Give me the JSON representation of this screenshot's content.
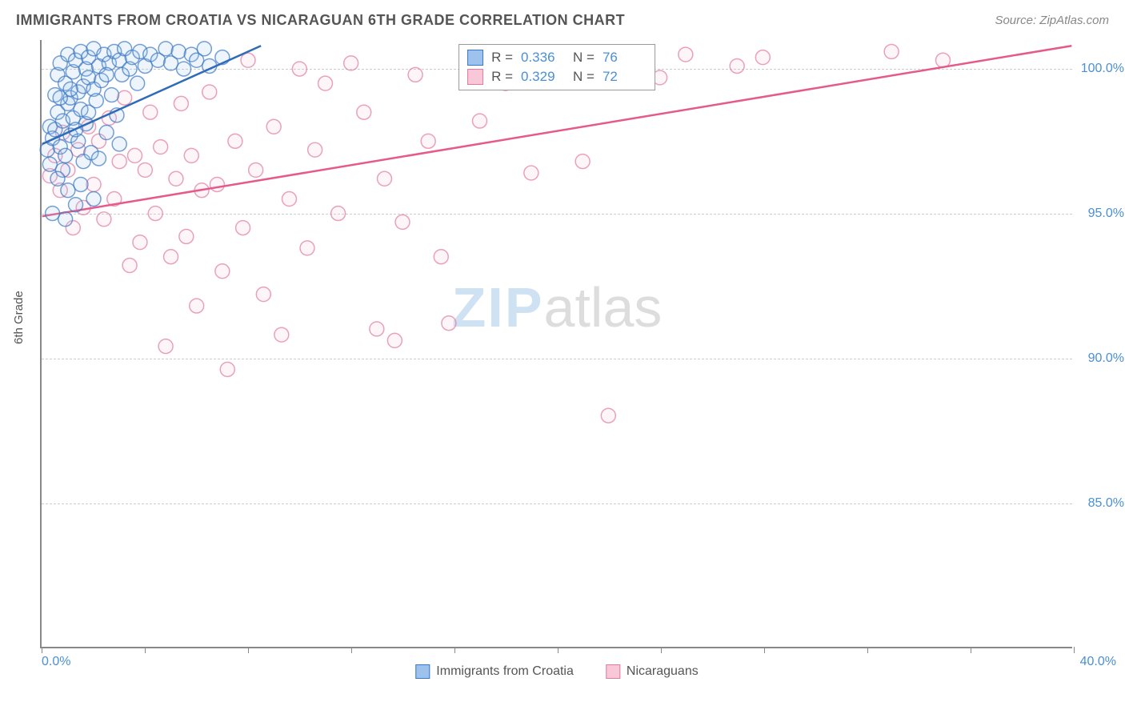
{
  "title": "IMMIGRANTS FROM CROATIA VS NICARAGUAN 6TH GRADE CORRELATION CHART",
  "source": "Source: ZipAtlas.com",
  "y_axis_label": "6th Grade",
  "watermark_a": "ZIP",
  "watermark_b": "atlas",
  "chart": {
    "type": "scatter",
    "xlim": [
      0,
      40
    ],
    "ylim": [
      80,
      101
    ],
    "x_ticks": [
      0,
      4,
      8,
      12,
      16,
      20,
      24,
      28,
      32,
      36,
      40
    ],
    "x_tick_labels": {
      "min": "0.0%",
      "max": "40.0%"
    },
    "y_gridlines": [
      85,
      90,
      95,
      100
    ],
    "y_tick_labels": [
      "85.0%",
      "90.0%",
      "95.0%",
      "100.0%"
    ],
    "background_color": "#ffffff",
    "grid_color": "#cccccc",
    "axis_color": "#888888",
    "tick_label_color": "#4a8fd8",
    "marker_radius": 9,
    "marker_fill_opacity": 0.18,
    "marker_stroke_opacity": 0.7,
    "line_width": 2.5
  },
  "series_a": {
    "name": "Immigrants from Croatia",
    "color_fill": "#9dc3ec",
    "color_stroke": "#3b78c4",
    "line_color": "#2e6bb8",
    "R": "0.336",
    "N": "76",
    "trend": {
      "x1": 0,
      "y1": 97.4,
      "x2": 8.5,
      "y2": 100.8
    },
    "points": [
      [
        0.2,
        97.2
      ],
      [
        0.3,
        98.0
      ],
      [
        0.4,
        97.6
      ],
      [
        0.5,
        99.1
      ],
      [
        0.5,
        97.9
      ],
      [
        0.6,
        98.5
      ],
      [
        0.6,
        99.8
      ],
      [
        0.7,
        97.3
      ],
      [
        0.7,
        100.2
      ],
      [
        0.8,
        98.2
      ],
      [
        0.8,
        96.5
      ],
      [
        0.9,
        99.5
      ],
      [
        0.9,
        97.0
      ],
      [
        1.0,
        98.8
      ],
      [
        1.0,
        100.5
      ],
      [
        1.1,
        99.0
      ],
      [
        1.1,
        97.7
      ],
      [
        1.2,
        99.9
      ],
      [
        1.2,
        98.3
      ],
      [
        1.3,
        100.3
      ],
      [
        1.3,
        95.3
      ],
      [
        1.4,
        99.2
      ],
      [
        1.4,
        97.5
      ],
      [
        1.5,
        100.6
      ],
      [
        1.5,
        98.6
      ],
      [
        1.6,
        99.4
      ],
      [
        1.6,
        96.8
      ],
      [
        1.7,
        100.0
      ],
      [
        1.7,
        98.1
      ],
      [
        1.8,
        99.7
      ],
      [
        1.8,
        100.4
      ],
      [
        1.9,
        97.1
      ],
      [
        2.0,
        99.3
      ],
      [
        2.0,
        100.7
      ],
      [
        2.1,
        98.9
      ],
      [
        2.2,
        100.1
      ],
      [
        2.3,
        99.6
      ],
      [
        2.4,
        100.5
      ],
      [
        2.5,
        97.8
      ],
      [
        2.6,
        100.2
      ],
      [
        2.7,
        99.1
      ],
      [
        2.8,
        100.6
      ],
      [
        2.9,
        98.4
      ],
      [
        3.0,
        100.3
      ],
      [
        3.1,
        99.8
      ],
      [
        3.2,
        100.7
      ],
      [
        3.4,
        100.0
      ],
      [
        3.5,
        100.4
      ],
      [
        3.7,
        99.5
      ],
      [
        3.8,
        100.6
      ],
      [
        4.0,
        100.1
      ],
      [
        4.2,
        100.5
      ],
      [
        4.5,
        100.3
      ],
      [
        4.8,
        100.7
      ],
      [
        5.0,
        100.2
      ],
      [
        5.3,
        100.6
      ],
      [
        5.5,
        100.0
      ],
      [
        5.8,
        100.5
      ],
      [
        6.0,
        100.3
      ],
      [
        6.3,
        100.7
      ],
      [
        6.5,
        100.1
      ],
      [
        7.0,
        100.4
      ],
      [
        0.4,
        95.0
      ],
      [
        1.0,
        95.8
      ],
      [
        0.6,
        96.2
      ],
      [
        1.5,
        96.0
      ],
      [
        1.8,
        98.5
      ],
      [
        2.2,
        96.9
      ],
      [
        0.9,
        94.8
      ],
      [
        2.5,
        99.8
      ],
      [
        3.0,
        97.4
      ],
      [
        1.1,
        99.3
      ],
      [
        0.3,
        96.7
      ],
      [
        2.0,
        95.5
      ],
      [
        0.7,
        99.0
      ],
      [
        1.3,
        97.9
      ]
    ]
  },
  "series_b": {
    "name": "Nicaraguans",
    "color_fill": "#f8c8d8",
    "color_stroke": "#e07ba0",
    "line_color": "#e55a8a",
    "R": "0.329",
    "N": "72",
    "trend": {
      "x1": 0,
      "y1": 94.9,
      "x2": 40,
      "y2": 100.8
    },
    "points": [
      [
        0.3,
        96.3
      ],
      [
        0.5,
        97.0
      ],
      [
        0.7,
        95.8
      ],
      [
        0.8,
        97.8
      ],
      [
        1.0,
        96.5
      ],
      [
        1.2,
        94.5
      ],
      [
        1.4,
        97.2
      ],
      [
        1.6,
        95.2
      ],
      [
        1.8,
        98.0
      ],
      [
        2.0,
        96.0
      ],
      [
        2.2,
        97.5
      ],
      [
        2.4,
        94.8
      ],
      [
        2.6,
        98.3
      ],
      [
        2.8,
        95.5
      ],
      [
        3.0,
        96.8
      ],
      [
        3.2,
        99.0
      ],
      [
        3.4,
        93.2
      ],
      [
        3.6,
        97.0
      ],
      [
        3.8,
        94.0
      ],
      [
        4.0,
        96.5
      ],
      [
        4.2,
        98.5
      ],
      [
        4.4,
        95.0
      ],
      [
        4.6,
        97.3
      ],
      [
        4.8,
        90.4
      ],
      [
        5.0,
        93.5
      ],
      [
        5.2,
        96.2
      ],
      [
        5.4,
        98.8
      ],
      [
        5.6,
        94.2
      ],
      [
        5.8,
        97.0
      ],
      [
        6.0,
        91.8
      ],
      [
        6.2,
        95.8
      ],
      [
        6.5,
        99.2
      ],
      [
        6.8,
        96.0
      ],
      [
        7.0,
        93.0
      ],
      [
        7.2,
        89.6
      ],
      [
        7.5,
        97.5
      ],
      [
        7.8,
        94.5
      ],
      [
        8.0,
        100.3
      ],
      [
        8.3,
        96.5
      ],
      [
        8.6,
        92.2
      ],
      [
        9.0,
        98.0
      ],
      [
        9.3,
        90.8
      ],
      [
        9.6,
        95.5
      ],
      [
        10.0,
        100.0
      ],
      [
        10.3,
        93.8
      ],
      [
        10.6,
        97.2
      ],
      [
        11.0,
        99.5
      ],
      [
        11.5,
        95.0
      ],
      [
        12.0,
        100.2
      ],
      [
        12.5,
        98.5
      ],
      [
        13.0,
        91.0
      ],
      [
        13.3,
        96.2
      ],
      [
        13.7,
        90.6
      ],
      [
        14.0,
        94.7
      ],
      [
        14.5,
        99.8
      ],
      [
        15.0,
        97.5
      ],
      [
        15.5,
        93.5
      ],
      [
        15.8,
        91.2
      ],
      [
        16.5,
        100.4
      ],
      [
        17.0,
        98.2
      ],
      [
        18.0,
        99.5
      ],
      [
        19.0,
        96.4
      ],
      [
        20.0,
        100.0
      ],
      [
        21.0,
        96.8
      ],
      [
        22.0,
        88.0
      ],
      [
        23.0,
        100.3
      ],
      [
        24.0,
        99.7
      ],
      [
        25.0,
        100.5
      ],
      [
        27.0,
        100.1
      ],
      [
        28.0,
        100.4
      ],
      [
        33.0,
        100.6
      ],
      [
        35.0,
        100.3
      ]
    ]
  },
  "stats_labels": {
    "R": "R =",
    "N": "N ="
  },
  "legend": {
    "a": "Immigrants from Croatia",
    "b": "Nicaraguans"
  }
}
